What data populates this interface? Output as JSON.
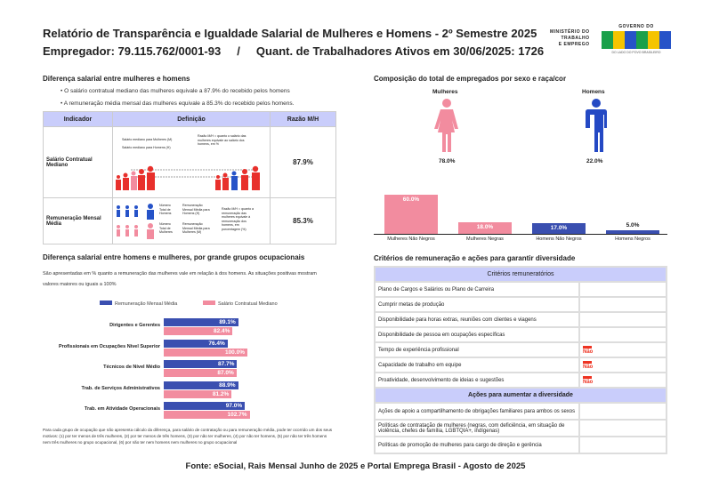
{
  "header": {
    "title": "Relatório de Transparência e Igualdade Salarial de Mulheres e Homens - 2º Semestre 2025",
    "subtitle": "Empregador: 79.115.762/0001-93     /     Quant. de Trabalhadores Ativos em 30/06/2025: 1726",
    "logo_ministry": [
      "MINISTÉRIO DO",
      "TRABALHO",
      "E EMPREGO"
    ],
    "logo_gov": "GOVERNO DO",
    "logo_brasil": "BRASIL",
    "logo_slogan": "DO LADO DO POVO BRASILEIRO"
  },
  "diff": {
    "title": "Diferença salarial entre mulheres e homens",
    "bullets": [
      "• O salário contratual mediano das mulheres equivale a 87.9% do recebido pelos homens",
      "• A remuneração média mensal das mulheres equivale a 85.3% do recebido pelos homens."
    ],
    "columns": [
      "Indicador",
      "Definição",
      "Razão M/H"
    ],
    "rows": [
      {
        "indicator": "Salário Contratual Mediano",
        "ratio": "87.9%",
        "def": [
          "Salário mediano para Mulheres (M)",
          "Salário mediano para Homens (H)",
          "Razão M/H = quanto o salário das mulheres equivale ao salário dos homens, em %"
        ]
      },
      {
        "indicator": "Remuneração Mensal Média",
        "ratio": "85.3%",
        "def": [
          "Número Total de Homens",
          "Remuneração Mensal Média para Homens (H)",
          "Número Total de Mulheres",
          "Remuneração Mensal Média para Mulheres (M)",
          "Razão M/H = quanto a remuneração das mulheres equivale à remuneração dos homens, em porcentagem (%)"
        ]
      }
    ]
  },
  "composition": {
    "title": "Composição do total de empregados por sexo e raça/cor",
    "women_label": "Mulheres",
    "men_label": "Homens",
    "women_pct": "78.0%",
    "men_pct": "22.0%",
    "chart_data": {
      "type": "bar",
      "categories": [
        "Mulheres Não Negros",
        "Mulheres Negras",
        "Homens Não Negros",
        "Homens Negros"
      ],
      "values": [
        60.0,
        18.0,
        17.0,
        5.0
      ],
      "labels": [
        "60.0%",
        "18.0%",
        "17.0%",
        "5.0%"
      ],
      "colors": [
        "#f28c9f",
        "#f28c9f",
        "#3a4fb0",
        "#3a4fb0"
      ]
    }
  },
  "occupations": {
    "title": "Diferença salarial entre homens e mulheres, por grande grupos ocupacionais",
    "desc": "São apresentadas em % quanto a remuneração das mulheres vale em relação à dos homens. As situações positivas mostram valores maiores ou iguais a 100%",
    "legend": [
      "Remuneração Mensal Média",
      "Salário Contratual Mediano"
    ],
    "chart_data": {
      "type": "bar",
      "orientation": "horizontal",
      "categories": [
        "Dirigentes e Gerentes",
        "Profissionais em Ocupações Nível Superior",
        "Técnicos de Nível Médio",
        "Trab. de Serviços Administrativos",
        "Trab. em Atividade Operacionais"
      ],
      "series": [
        {
          "name": "Remuneração Mensal Média",
          "values": [
            89.1,
            76.4,
            87.7,
            88.9,
            97.0
          ],
          "labels": [
            "89.1%",
            "76.4%",
            "87.7%",
            "88.9%",
            "97.0%"
          ],
          "color": "#3a4fb0"
        },
        {
          "name": "Salário Contratual Mediano",
          "values": [
            82.4,
            100.0,
            87.0,
            81.2,
            102.7
          ],
          "labels": [
            "82.4%",
            "100.0%",
            "87.0%",
            "81.2%",
            "102.7%"
          ],
          "color": "#f28c9f"
        }
      ]
    },
    "note": "Para cada grupo de ocupação que não apresenta cálculo da diferença, para salário de contratação ou para remuneração média, pode ter ocorrido um dos seus motivos: (1) por ter menos de três mulheres, (2) por ter menos de três homens, (3) por não ter mulheres, (4) por não ter homens, (5) por não ter três homens nem três mulheres no grupo ocupacional, (6) por não ter nem homens nem mulheres no grupo ocupacional"
  },
  "criteria": {
    "title": "Critérios de remuneração e ações para garantir diversidade",
    "section1": "Critérios remuneratórios",
    "items": [
      {
        "label": "Plano de Cargos e Salários ou Plano de Carreira",
        "no": false
      },
      {
        "label": "Cumprir metas de produção",
        "no": false
      },
      {
        "label": "Disponibilidade para horas extras, reuniões com clientes e viagens",
        "no": false
      },
      {
        "label": "Disponibilidade de pessoa em ocupações específicas",
        "no": false
      },
      {
        "label": "Tempo de experiência profissional",
        "no": true
      },
      {
        "label": "Capacidade de trabalho em equipe",
        "no": true
      },
      {
        "label": "Proatividade, desenvolvimento de ideias e sugestões",
        "no": true
      }
    ],
    "section2": "Ações para aumentar a diversidade",
    "actions": [
      "Ações de apoio a compartilhamento de obrigações familiares para ambos os sexos",
      "Políticas de contratação de mulheres (negras, com deficiência, em situação de violência, chefes de família, LGBTQIA+, indígenas)",
      "Políticas de promoção de mulheres para cargo de direção e gerência"
    ],
    "no_icon": "Não"
  },
  "footer": "Fonte: eSocial, Rais Mensal Junho de 2025 e Portal Emprega Brasil - Agosto de 2025"
}
